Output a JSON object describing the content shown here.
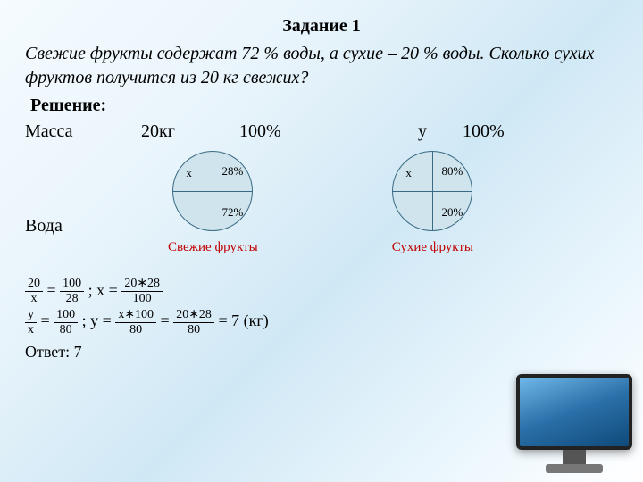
{
  "title": "Задание 1",
  "problem": "Свежие фрукты содержат 72 % воды, а сухие – 20 % воды. Сколько сухих фруктов получится из 20 кг свежих?",
  "solution_label": "Решение:",
  "row1": {
    "label": "Масса",
    "c1": "20кг",
    "c2": "100%",
    "c3": "у",
    "c4": "100%"
  },
  "voda": "Вода",
  "diagram": {
    "fresh": {
      "tl": "х",
      "tr": "28%",
      "br": "72%",
      "caption": "Свежие фрукты",
      "fill": "#cfe4ed",
      "stroke": "#3a6a82",
      "caption_color": "#c00000"
    },
    "dry": {
      "tl": "х",
      "tr": "80%",
      "br": "20%",
      "caption": "Сухие фрукты",
      "fill": "#cfe4ed",
      "stroke": "#3a6a82",
      "caption_color": "#c00000"
    }
  },
  "eq1": {
    "f1n": "20",
    "f1d": "х",
    "f2n": "100",
    "f2d": "28",
    "mid": " ; x = ",
    "f3n": "20∗28",
    "f3d": "100"
  },
  "eq2": {
    "f1n": "у",
    "f1d": "х",
    "f2n": "100",
    "f2d": "80",
    "mid": " ; y = ",
    "f3n": "х∗100",
    "f3d": "80",
    "eq": " = ",
    "f4n": "20∗28",
    "f4d": "80",
    "tail": " = 7 (кг)"
  },
  "answer": "Ответ: 7"
}
